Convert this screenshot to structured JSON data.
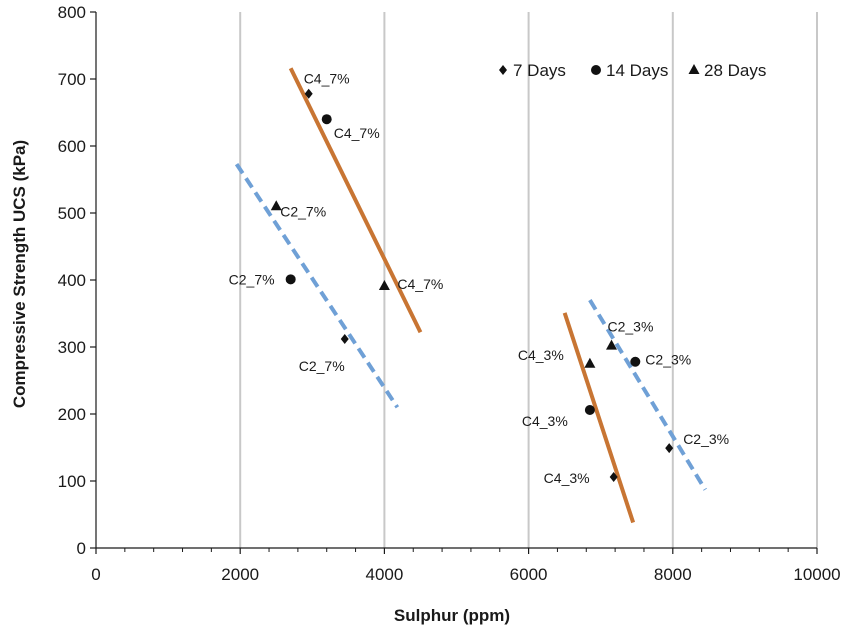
{
  "chart_data": {
    "type": "scatter",
    "xlabel": "Sulphur (ppm)",
    "ylabel": "Compressive Strength UCS (kPa)",
    "xlim": [
      0,
      10000
    ],
    "ylim": [
      0,
      800
    ],
    "xticks": [
      0,
      2000,
      4000,
      6000,
      8000,
      10000
    ],
    "yticks": [
      0,
      100,
      200,
      300,
      400,
      500,
      600,
      700,
      800
    ],
    "xtick_labels": [
      "0",
      "2000",
      "4000",
      "6000",
      "8000",
      "10000"
    ],
    "ytick_labels": [
      "0",
      "100",
      "200",
      "300",
      "400",
      "500",
      "600",
      "700",
      "800"
    ],
    "grid": "vertical",
    "legend_position": "top-right",
    "series": [
      {
        "name": "7 Days",
        "marker": "diamond",
        "points": [
          {
            "x": 2950,
            "y": 678,
            "label": "C4_7%"
          },
          {
            "x": 3450,
            "y": 312,
            "label": "C2_7%"
          },
          {
            "x": 7180,
            "y": 106,
            "label": "C4_3%"
          },
          {
            "x": 7950,
            "y": 149,
            "label": "C2_3%"
          }
        ]
      },
      {
        "name": "14 Days",
        "marker": "circle",
        "points": [
          {
            "x": 3200,
            "y": 640,
            "label": "C4_7%"
          },
          {
            "x": 2700,
            "y": 401,
            "label": "C2_7%"
          },
          {
            "x": 6850,
            "y": 206,
            "label": "C4_3%"
          },
          {
            "x": 7480,
            "y": 278,
            "label": "C2_3%"
          }
        ]
      },
      {
        "name": "28 Days",
        "marker": "triangle",
        "points": [
          {
            "x": 2500,
            "y": 510,
            "label": "C2_7%"
          },
          {
            "x": 4000,
            "y": 391,
            "label": "C4_7%"
          },
          {
            "x": 6850,
            "y": 275,
            "label": "C4_3%"
          },
          {
            "x": 7150,
            "y": 302,
            "label": "C2_3%"
          }
        ]
      }
    ],
    "trend_lines": [
      {
        "style": "solid",
        "color": "#c87533",
        "x1": 2700,
        "y1": 716,
        "x2": 4500,
        "y2": 322
      },
      {
        "style": "dashed",
        "color": "#6fa0d6",
        "x1": 1950,
        "y1": 573,
        "x2": 4180,
        "y2": 210
      },
      {
        "style": "solid",
        "color": "#c87533",
        "x1": 6500,
        "y1": 351,
        "x2": 7450,
        "y2": 38
      },
      {
        "style": "dashed",
        "color": "#6fa0d6",
        "x1": 6850,
        "y1": 370,
        "x2": 8450,
        "y2": 87
      }
    ]
  }
}
